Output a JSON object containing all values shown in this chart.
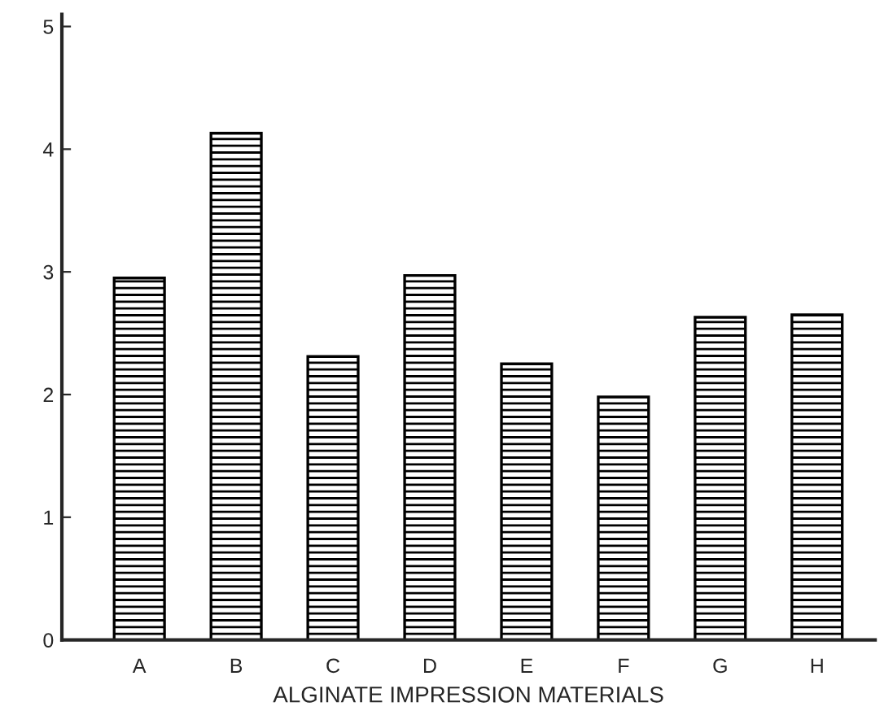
{
  "chart_data": {
    "type": "bar",
    "xlabel": "ALGINATE IMPRESSION MATERIALS",
    "categories": [
      "A",
      "B",
      "C",
      "D",
      "E",
      "F",
      "G",
      "H"
    ],
    "values": [
      2.95,
      4.13,
      2.31,
      2.97,
      2.25,
      1.98,
      2.63,
      2.65
    ],
    "color": "#000000",
    "ylim": [
      0,
      5.1
    ],
    "yticks": [
      0,
      1,
      2,
      3,
      4,
      5
    ],
    "grid": false
  }
}
